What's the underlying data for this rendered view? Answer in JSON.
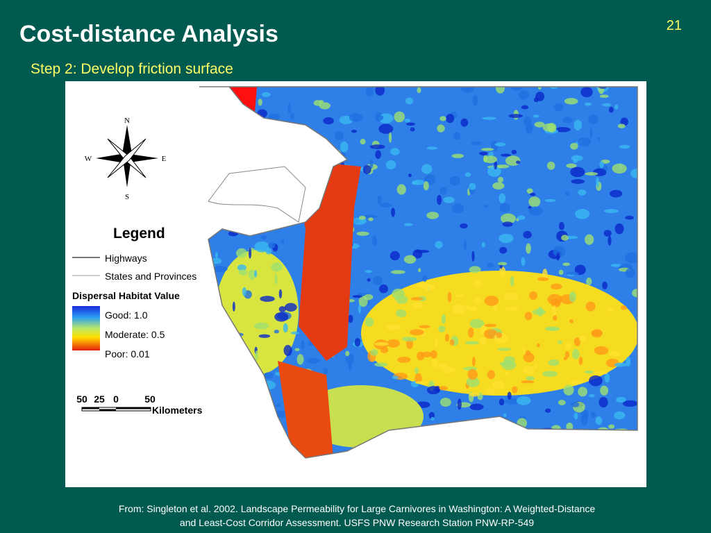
{
  "slide": {
    "number": "21",
    "title": "Cost-distance Analysis",
    "subtitle": "Step 2: Develop friction surface"
  },
  "map": {
    "compass": {
      "n": "N",
      "s": "S",
      "e": "E",
      "w": "W"
    },
    "legend": {
      "title": "Legend",
      "items": [
        "Highways",
        "States and Provinces"
      ],
      "habitat_title": "Dispersal Habitat Value",
      "habitat_labels": [
        "Good: 1.0",
        "Moderate: 0.5",
        "Poor: 0.01"
      ]
    },
    "scale": {
      "ticks": [
        "50",
        "25",
        "0",
        "50"
      ],
      "unit": "Kilometers"
    }
  },
  "citation": [
    "From: Singleton et al. 2002. Landscape Permeability for Large Carnivores in Washington: A Weighted-Distance",
    "and Least-Cost Corridor Assessment. USFS PNW Research Station PNW-RP-549"
  ]
}
